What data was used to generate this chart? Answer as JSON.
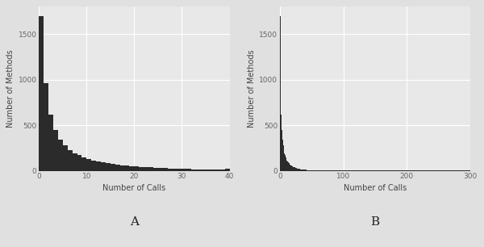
{
  "panel_A": {
    "label": "A",
    "xlabel": "Number of Calls",
    "ylabel": "Number of Methods",
    "xlim": [
      0,
      40
    ],
    "ylim": [
      0,
      1800
    ],
    "yticks": [
      0,
      500,
      1000,
      1500
    ],
    "xticks": [
      0,
      10,
      20,
      30,
      40
    ],
    "bar_color": "#2b2b2b",
    "bins_per_unit": 1,
    "bin_counts": [
      1700,
      960,
      620,
      450,
      340,
      280,
      230,
      195,
      170,
      150,
      130,
      115,
      100,
      90,
      82,
      75,
      68,
      62,
      57,
      52,
      48,
      44,
      40,
      37,
      34,
      31,
      29,
      27,
      25,
      23,
      21,
      20,
      18,
      17,
      16,
      15,
      14,
      13,
      12,
      20
    ]
  },
  "panel_B": {
    "label": "B",
    "xlabel": "Number of Calls",
    "ylabel": "Number of Methods",
    "xlim": [
      0,
      300
    ],
    "ylim": [
      0,
      1800
    ],
    "yticks": [
      0,
      500,
      1000,
      1500
    ],
    "xticks": [
      0,
      100,
      200,
      300
    ],
    "bar_color": "#2b2b2b",
    "bin_counts": [
      1700,
      960,
      620,
      450,
      340,
      280,
      230,
      195,
      170,
      150,
      130,
      115,
      100,
      90,
      82,
      75,
      68,
      62,
      57,
      52,
      48,
      44,
      40,
      37,
      34,
      31,
      29,
      27,
      25,
      23,
      21,
      20,
      18,
      17,
      16,
      15,
      14,
      13,
      12,
      11,
      10,
      10,
      9,
      9,
      8,
      8,
      8,
      7,
      7,
      7,
      6,
      6,
      6,
      6,
      5,
      5,
      5,
      5,
      5,
      4,
      4,
      4,
      4,
      4,
      4,
      3,
      3,
      3,
      3,
      3,
      3,
      3,
      3,
      3,
      3,
      2,
      2,
      2,
      2,
      2,
      2,
      2,
      2,
      2,
      2,
      2,
      2,
      2,
      1,
      1,
      1,
      1,
      1,
      1,
      1,
      1,
      1,
      1,
      1,
      1,
      1,
      1,
      1,
      1,
      1,
      1,
      1,
      1,
      1,
      1,
      1,
      1,
      1,
      1,
      1,
      1,
      1,
      1,
      1,
      1,
      1,
      1,
      1,
      1,
      1,
      1,
      1,
      1,
      1,
      1,
      1,
      1,
      1,
      1,
      1,
      1,
      1,
      1,
      1,
      1,
      1,
      1,
      1,
      1,
      1,
      1,
      1,
      1,
      1,
      1,
      1,
      1,
      1,
      1,
      1,
      1,
      1,
      1,
      1,
      1,
      1,
      1,
      1,
      1,
      1,
      1,
      1,
      1,
      1,
      1,
      1,
      1,
      1,
      1,
      1,
      1,
      1,
      1,
      1,
      1,
      1,
      1,
      1,
      1,
      1,
      1,
      1,
      1,
      1,
      1,
      1,
      1,
      1,
      1,
      1,
      1,
      1,
      1,
      1,
      1,
      1,
      1,
      1,
      1,
      1,
      1,
      1,
      1,
      1,
      1,
      1,
      1,
      1,
      1,
      1,
      1,
      1,
      1,
      1,
      1,
      1,
      1,
      1,
      1,
      1,
      1,
      1,
      1,
      1,
      1,
      1,
      1,
      1,
      1,
      1,
      1,
      1,
      1,
      1,
      1,
      1,
      1,
      1,
      1,
      1,
      1,
      1,
      1,
      1,
      1,
      1,
      1,
      1,
      1,
      1,
      1,
      1,
      1,
      1,
      1,
      1,
      1,
      1,
      1,
      1,
      1,
      1,
      1,
      1,
      1,
      1,
      1,
      1,
      1,
      1,
      1,
      1,
      1,
      1,
      1,
      1,
      1,
      1,
      1,
      1,
      1,
      1,
      1,
      1,
      1,
      1,
      1,
      1,
      1,
      1,
      1,
      1,
      1,
      1,
      1
    ]
  },
  "bg_color": "#e8e8e8",
  "grid_color": "#ffffff",
  "outer_bg": "#e0e0e0",
  "label_fontsize": 7,
  "tick_fontsize": 6.5,
  "panel_label_fontsize": 11
}
